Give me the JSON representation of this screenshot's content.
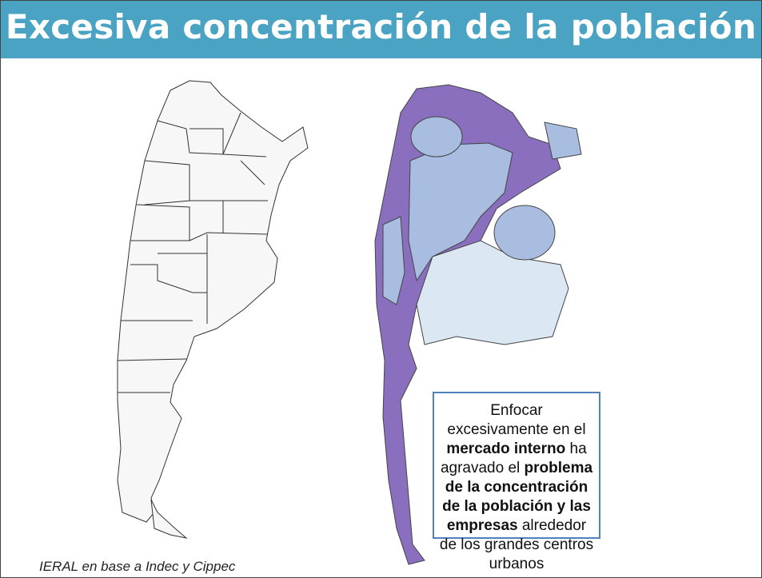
{
  "header": {
    "title": "Excesiva concentración de la población"
  },
  "callout": {
    "segments": [
      {
        "text": "Enfocar excesivamente en el ",
        "bold": false
      },
      {
        "text": "mercado interno",
        "bold": true
      },
      {
        "text": " ha agravado el ",
        "bold": false
      },
      {
        "text": "problema de la concentración de la población y las empresas",
        "bold": true
      },
      {
        "text": " alrededor de los grandes centros urbanos",
        "bold": false
      }
    ]
  },
  "source": "IERAL en base a Indec y Cippec"
}
